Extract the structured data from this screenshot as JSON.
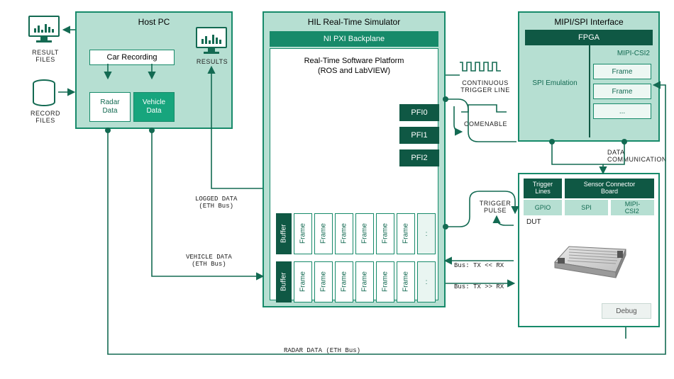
{
  "colors": {
    "panel_bg": "#b6dfd2",
    "panel_border": "#178a6a",
    "dark": "#0f5844",
    "accent": "#17a57d",
    "text_green": "#136a52",
    "white": "#ffffff",
    "light": "#edf7f3",
    "debug_bg": "#edf2f0"
  },
  "left": {
    "result_files": "RESULT\nFILES",
    "record_files": "RECORD\nFILES",
    "results": "RESULTS",
    "monitor_bars_left": [
      6,
      10,
      4,
      12,
      8,
      5
    ],
    "monitor_bars_right": [
      7,
      11,
      5,
      13,
      9,
      6
    ]
  },
  "hostpc": {
    "title": "Host PC",
    "car_recording": "Car Recording",
    "radar_data": "Radar\nData",
    "vehicle_data": "Vehicle\nData"
  },
  "hil": {
    "title": "HIL Real-Time Simulator",
    "backplane": "NI PXI Backplane",
    "platform": "Real-Time Software Platform\n(ROS and LabVIEW)",
    "pfi": [
      "PFI0",
      "PFI1",
      "PFI2"
    ],
    "row1": [
      "Buffer",
      "Frame",
      "Frame",
      "Frame",
      "Frame",
      "Frame",
      "Frame",
      ":"
    ],
    "row2": [
      "Buffer",
      "Frame",
      "Frame",
      "Frame",
      "Frame",
      "Frame",
      "Frame",
      ":"
    ]
  },
  "mipi": {
    "title": "MIPI/SPI Interface",
    "fpga": "FPGA",
    "spi_emul": "SPI Emulation",
    "mipi_csi2": "MIPI-CSI2",
    "frames": [
      "Frame",
      "Frame",
      "..."
    ]
  },
  "dut": {
    "trigger_lines": "Trigger\nLines",
    "sensor_board": "Sensor Connector\nBoard",
    "gpio": "GPIO",
    "spi": "SPI",
    "mipi": "MIPI-\nCSI2",
    "dut_label": "DUT",
    "debug": "Debug"
  },
  "labels": {
    "logged_data": "LOGGED DATA\n(ETH Bus)",
    "vehicle_data": "VEHICLE DATA\n(ETH Bus)",
    "radar_data": "RADAR DATA (ETH Bus)",
    "continuous_trigger": "CONTINUOUS\nTRIGGER LINE",
    "comenable": "COMENABLE",
    "trigger_pulse": "TRIGGER\nPULSE",
    "data_comm": "DATA\nCOMMUNICATION",
    "bus_tx_lt_rx": "Bus: TX << RX",
    "bus_tx_gt_rx": "Bus: TX >> RX"
  }
}
